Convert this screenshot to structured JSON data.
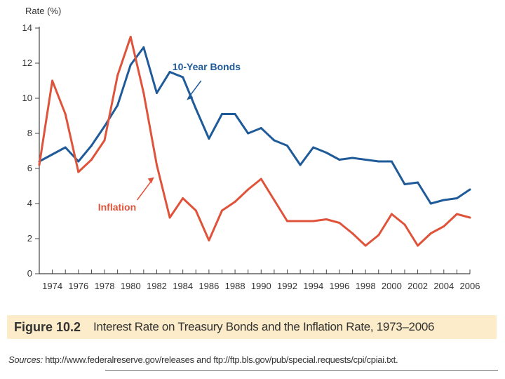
{
  "chart_data": {
    "type": "line",
    "ylabel": "Rate (%)",
    "xlabel": "",
    "ylim": [
      0,
      14
    ],
    "xlim": [
      1973,
      2006
    ],
    "x_ticks": [
      1974,
      1976,
      1978,
      1980,
      1982,
      1984,
      1986,
      1988,
      1990,
      1992,
      1994,
      1996,
      1998,
      2000,
      2002,
      2004,
      2006
    ],
    "x_tick_labels": [
      "1974",
      "1976",
      "1978",
      "1980",
      "1982",
      "1984",
      "1986",
      "1988",
      "1990",
      "1992",
      "1994",
      "1996",
      "1998",
      "2000",
      "2002",
      "2004",
      "2006"
    ],
    "y_ticks": [
      0,
      2,
      4,
      6,
      8,
      10,
      12,
      14
    ],
    "y_tick_labels": [
      "0",
      "2",
      "4",
      "6",
      "8",
      "10",
      "12",
      "14"
    ],
    "grid": false,
    "x": [
      1973,
      1974,
      1975,
      1976,
      1977,
      1978,
      1979,
      1980,
      1981,
      1982,
      1983,
      1984,
      1985,
      1986,
      1987,
      1988,
      1989,
      1990,
      1991,
      1992,
      1993,
      1994,
      1995,
      1996,
      1997,
      1998,
      1999,
      2000,
      2001,
      2002,
      2003,
      2004,
      2005,
      2006
    ],
    "series": [
      {
        "name": "10-Year Bonds",
        "color": "#1f5a99",
        "values": [
          6.4,
          6.8,
          7.2,
          6.4,
          7.3,
          8.4,
          9.6,
          11.9,
          12.9,
          10.3,
          11.5,
          11.2,
          9.4,
          7.7,
          9.1,
          9.1,
          8.0,
          8.3,
          7.6,
          7.3,
          6.2,
          7.2,
          6.9,
          6.5,
          6.6,
          6.5,
          6.4,
          6.4,
          5.1,
          5.2,
          4.0,
          4.2,
          4.3,
          4.8
        ]
      },
      {
        "name": "Inflation",
        "color": "#e0533b",
        "values": [
          6.2,
          11.0,
          9.1,
          5.8,
          6.5,
          7.6,
          11.3,
          13.5,
          10.3,
          6.2,
          3.2,
          4.3,
          3.6,
          1.9,
          3.6,
          4.1,
          4.8,
          5.4,
          4.2,
          3.0,
          3.0,
          3.0,
          3.1,
          2.9,
          2.3,
          1.6,
          2.2,
          3.4,
          2.8,
          1.6,
          2.3,
          2.7,
          3.4,
          3.2
        ]
      }
    ]
  },
  "caption": {
    "figure_number": "Figure 10.2",
    "title": "Interest Rate on Treasury Bonds and the Inflation Rate, 1973–2006"
  },
  "sources": {
    "label": "Sources:",
    "text": " http://www.federalreserve.gov/releases and ftp://ftp.bls.gov/pub/special.requests/cpi/cpiai.txt."
  }
}
